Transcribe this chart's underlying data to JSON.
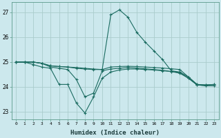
{
  "xlabel": "Humidex (Indice chaleur)",
  "background_color": "#cce8ed",
  "grid_color": "#aacccc",
  "line_color": "#1a6b60",
  "ylim": [
    22.7,
    27.4
  ],
  "xlim": [
    -0.5,
    23.5
  ],
  "yticks": [
    23,
    24,
    25,
    26,
    27
  ],
  "xticks": [
    0,
    1,
    2,
    3,
    4,
    5,
    6,
    7,
    8,
    9,
    10,
    11,
    12,
    13,
    14,
    15,
    16,
    17,
    18,
    19,
    20,
    21,
    22,
    23
  ],
  "series": [
    [
      25.0,
      25.0,
      25.0,
      24.95,
      24.85,
      24.82,
      24.8,
      24.78,
      24.75,
      24.72,
      24.7,
      24.8,
      24.82,
      24.83,
      24.82,
      24.8,
      24.78,
      24.76,
      24.73,
      24.7,
      24.4,
      24.1,
      24.08,
      24.1
    ],
    [
      25.0,
      25.0,
      25.0,
      24.95,
      24.85,
      24.82,
      24.8,
      24.75,
      24.72,
      24.7,
      24.7,
      26.9,
      27.1,
      26.8,
      26.2,
      25.8,
      25.45,
      25.1,
      24.65,
      24.6,
      24.4,
      24.1,
      24.08,
      24.1
    ],
    [
      25.0,
      25.0,
      24.9,
      24.8,
      24.75,
      24.1,
      24.1,
      23.35,
      22.95,
      23.6,
      24.35,
      24.6,
      24.68,
      24.72,
      24.72,
      24.7,
      24.68,
      24.65,
      24.62,
      24.58,
      24.35,
      24.08,
      24.05,
      24.05
    ],
    [
      25.0,
      25.0,
      25.0,
      24.95,
      24.8,
      24.75,
      24.7,
      24.3,
      23.6,
      23.75,
      24.65,
      24.72,
      24.75,
      24.78,
      24.76,
      24.73,
      24.7,
      24.67,
      24.62,
      24.55,
      24.35,
      24.08,
      24.05,
      24.05
    ]
  ]
}
